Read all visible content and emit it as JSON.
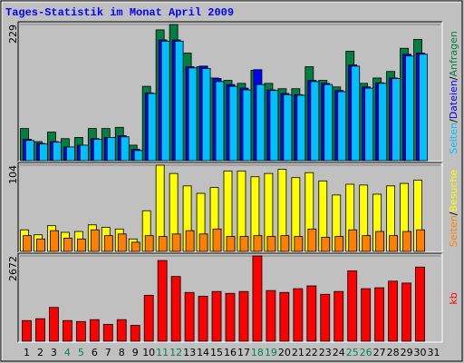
{
  "title": "Tages-Statistik im Monat April 2009",
  "legend_separator": "/",
  "chart_data": [
    {
      "type": "bar",
      "ylim": [
        0,
        229
      ],
      "yticks": [
        229
      ],
      "series": [
        {
          "name": "Anfragen",
          "color": "#008040",
          "values": [
            54,
            32,
            48,
            37,
            39,
            54,
            54,
            56,
            26,
            125,
            220,
            229,
            181,
            158,
            139,
            135,
            130,
            152,
            130,
            121,
            121,
            158,
            135,
            124,
            184,
            130,
            139,
            150,
            189,
            204,
            null
          ]
        },
        {
          "name": "Dateien",
          "color": "#0000ff",
          "values": [
            36,
            29,
            32,
            23,
            26,
            37,
            39,
            42,
            19,
            114,
            203,
            203,
            158,
            159,
            138,
            128,
            122,
            153,
            119,
            113,
            111,
            135,
            130,
            118,
            161,
            124,
            131,
            139,
            179,
            181,
            null
          ]
        },
        {
          "name": "Seiten",
          "color": "#00c0ff",
          "values": [
            34,
            28,
            31,
            23,
            26,
            36,
            39,
            40,
            17,
            113,
            201,
            201,
            156,
            155,
            133,
            125,
            119,
            128,
            118,
            111,
            110,
            133,
            128,
            116,
            159,
            122,
            130,
            138,
            176,
            179,
            null
          ]
        }
      ]
    },
    {
      "type": "bar",
      "ylim": [
        0,
        104
      ],
      "yticks": [
        104
      ],
      "series": [
        {
          "name": "Besuche",
          "color": "#ffff00",
          "values": [
            26,
            20,
            31,
            23,
            24,
            32,
            29,
            27,
            15,
            49,
            104,
            94,
            79,
            70,
            77,
            97,
            97,
            90,
            94,
            99,
            89,
            95,
            85,
            68,
            81,
            80,
            69,
            79,
            82,
            86,
            null
          ]
        },
        {
          "name": "Seiten",
          "color": "#ff8000",
          "values": [
            19,
            15,
            25,
            16,
            15,
            26,
            19,
            21,
            11,
            19,
            18,
            21,
            25,
            21,
            27,
            18,
            18,
            19,
            18,
            19,
            18,
            27,
            17,
            18,
            26,
            19,
            24,
            19,
            24,
            26,
            null
          ]
        }
      ]
    },
    {
      "type": "bar",
      "ylim": [
        0,
        2672
      ],
      "yticks": [
        2672
      ],
      "categories": [
        1,
        2,
        3,
        4,
        5,
        6,
        7,
        8,
        9,
        10,
        11,
        12,
        13,
        14,
        15,
        16,
        17,
        18,
        19,
        20,
        21,
        22,
        23,
        24,
        25,
        26,
        27,
        28,
        29,
        30,
        31
      ],
      "category_colors": [
        "#000000",
        "#000000",
        "#000000",
        "#00805c",
        "#00805c",
        "#000000",
        "#000000",
        "#000000",
        "#000000",
        "#000000",
        "#00805c",
        "#00805c",
        "#000000",
        "#000000",
        "#000000",
        "#000000",
        "#000000",
        "#00805c",
        "#00805c",
        "#000000",
        "#000000",
        "#000000",
        "#000000",
        "#000000",
        "#00805c",
        "#00805c",
        "#000000",
        "#000000",
        "#000000",
        "#000000",
        "#000000"
      ],
      "series": [
        {
          "name": "kb",
          "color": "#ff0000",
          "values": [
            647,
            706,
            1058,
            647,
            617,
            676,
            529,
            676,
            500,
            1440,
            2528,
            2028,
            1528,
            1411,
            1558,
            1499,
            1558,
            2672,
            1587,
            1528,
            1646,
            1734,
            1470,
            1558,
            2205,
            1646,
            1675,
            1881,
            1822,
            2322,
            null
          ]
        }
      ]
    }
  ]
}
